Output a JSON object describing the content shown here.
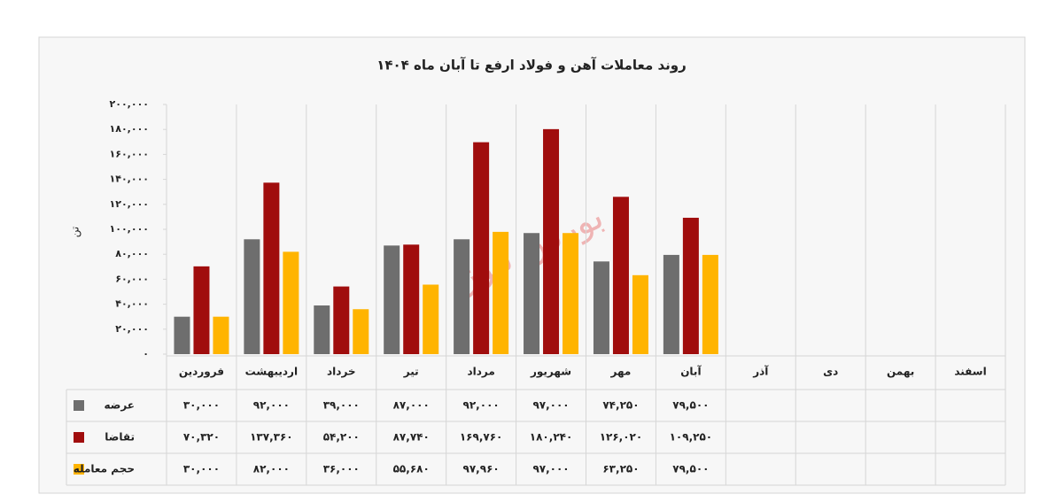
{
  "chart_data": {
    "type": "bar",
    "title": "روند معاملات آهن و فولاد ارفع تا آبان ماه ۱۴۰۴",
    "y_label": "تن",
    "watermark": "بورس نیوز",
    "categories": [
      "فروردین",
      "اردیبهشت",
      "خرداد",
      "تیر",
      "مرداد",
      "شهریور",
      "مهر",
      "آبان",
      "آذر",
      "دی",
      "بهمن",
      "اسفند"
    ],
    "series": [
      {
        "name": "عرضه",
        "color": "#6e6e6e",
        "values": [
          30000,
          92000,
          39000,
          87000,
          92000,
          97000,
          74250,
          79500,
          null,
          null,
          null,
          null
        ],
        "value_labels": [
          "۳۰,۰۰۰",
          "۹۲,۰۰۰",
          "۳۹,۰۰۰",
          "۸۷,۰۰۰",
          "۹۲,۰۰۰",
          "۹۷,۰۰۰",
          "۷۴,۲۵۰",
          "۷۹,۵۰۰",
          null,
          null,
          null,
          null
        ]
      },
      {
        "name": "تقاضا",
        "color": "#a00d0d",
        "values": [
          70320,
          137360,
          54200,
          87740,
          169760,
          180240,
          126020,
          109250,
          null,
          null,
          null,
          null
        ],
        "value_labels": [
          "۷۰,۳۲۰",
          "۱۳۷,۳۶۰",
          "۵۴,۲۰۰",
          "۸۷,۷۴۰",
          "۱۶۹,۷۶۰",
          "۱۸۰,۲۴۰",
          "۱۲۶,۰۲۰",
          "۱۰۹,۲۵۰",
          null,
          null,
          null,
          null
        ]
      },
      {
        "name": "حجم معامله",
        "color": "#ffb400",
        "values": [
          30000,
          82000,
          36000,
          55680,
          97960,
          97000,
          63250,
          79500,
          null,
          null,
          null,
          null
        ],
        "value_labels": [
          "۳۰,۰۰۰",
          "۸۲,۰۰۰",
          "۳۶,۰۰۰",
          "۵۵,۶۸۰",
          "۹۷,۹۶۰",
          "۹۷,۰۰۰",
          "۶۳,۲۵۰",
          "۷۹,۵۰۰",
          null,
          null,
          null,
          null
        ]
      }
    ],
    "ylim": [
      0,
      200000
    ],
    "yticks": [
      {
        "value": 0,
        "label": "۰"
      },
      {
        "value": 20000,
        "label": "۲۰,۰۰۰"
      },
      {
        "value": 40000,
        "label": "۴۰,۰۰۰"
      },
      {
        "value": 60000,
        "label": "۶۰,۰۰۰"
      },
      {
        "value": 80000,
        "label": "۸۰,۰۰۰"
      },
      {
        "value": 100000,
        "label": "۱۰۰,۰۰۰"
      },
      {
        "value": 120000,
        "label": "۱۲۰,۰۰۰"
      },
      {
        "value": 140000,
        "label": "۱۴۰,۰۰۰"
      },
      {
        "value": 160000,
        "label": "۱۶۰,۰۰۰"
      },
      {
        "value": 180000,
        "label": "۱۸۰,۰۰۰"
      },
      {
        "value": 200000,
        "label": "۲۰۰,۰۰۰"
      }
    ]
  }
}
